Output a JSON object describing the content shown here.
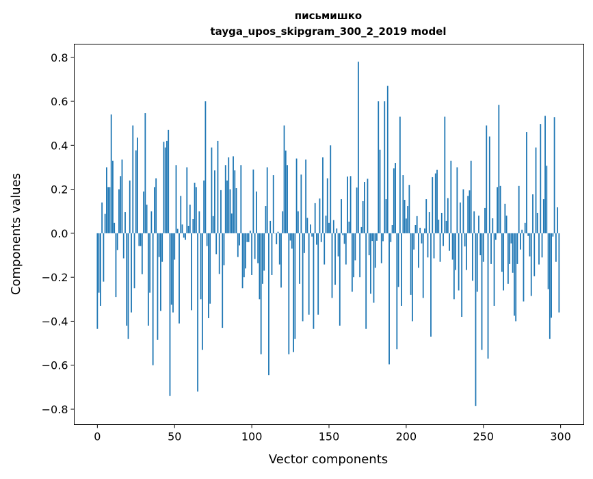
{
  "chart_data": {
    "type": "bar",
    "title_line1": "письмишко",
    "title_line2": "tayga_upos_skipgram_300_2_2019 model",
    "xlabel": "Vector components",
    "ylabel": "Components values",
    "xlim": [
      -15,
      315
    ],
    "ylim": [
      -0.87,
      0.86
    ],
    "xticks": [
      0,
      50,
      100,
      150,
      200,
      250,
      300
    ],
    "xtick_labels": [
      "0",
      "50",
      "100",
      "150",
      "200",
      "250",
      "300"
    ],
    "yticks": [
      -0.8,
      -0.6,
      -0.4,
      -0.2,
      0.0,
      0.2,
      0.4,
      0.6,
      0.8
    ],
    "ytick_labels": [
      "−0.8",
      "−0.6",
      "−0.4",
      "−0.2",
      "0.0",
      "0.2",
      "0.4",
      "0.6",
      "0.8"
    ],
    "grid": false,
    "color": "#1f77b4",
    "values": [
      -0.435,
      -0.27,
      -0.33,
      0.14,
      -0.22,
      0.088,
      0.3,
      0.21,
      0.21,
      0.54,
      0.33,
      0.047,
      -0.29,
      -0.076,
      0.2,
      0.26,
      0.335,
      -0.114,
      0.096,
      -0.42,
      -0.48,
      0.24,
      -0.36,
      0.49,
      -0.25,
      0.377,
      0.435,
      -0.058,
      -0.058,
      -0.186,
      0.19,
      0.547,
      0.13,
      -0.42,
      -0.27,
      0.1,
      -0.6,
      0.21,
      0.25,
      -0.485,
      -0.108,
      -0.353,
      -0.13,
      0.416,
      0.39,
      0.42,
      0.47,
      -0.74,
      -0.325,
      -0.36,
      -0.12,
      0.31,
      0.02,
      -0.41,
      0.17,
      0.04,
      -0.02,
      -0.03,
      0.3,
      0.034,
      0.13,
      -0.35,
      0.065,
      0.23,
      0.21,
      -0.72,
      0.1,
      -0.3,
      -0.53,
      0.24,
      0.6,
      -0.058,
      -0.386,
      -0.32,
      0.39,
      0.078,
      0.286,
      -0.095,
      0.42,
      -0.185,
      0.196,
      -0.43,
      -0.145,
      0.31,
      0.24,
      0.345,
      0.2,
      0.09,
      0.35,
      0.286,
      0.205,
      -0.108,
      -0.055,
      0.31,
      -0.25,
      -0.2,
      -0.16,
      -0.04,
      -0.04,
      0.012,
      -0.19,
      0.29,
      -0.117,
      0.19,
      -0.136,
      -0.3,
      -0.55,
      -0.23,
      -0.17,
      0.124,
      0.3,
      -0.645,
      0.056,
      -0.19,
      0.264,
      -0.001,
      -0.05,
      0.007,
      -0.142,
      -0.247,
      0.1,
      0.49,
      0.376,
      0.31,
      -0.55,
      -0.033,
      -0.07,
      -0.54,
      -0.48,
      0.34,
      0.1,
      -0.23,
      0.267,
      -0.4,
      -0.09,
      0.335,
      0.07,
      -0.37,
      0.04,
      -0.015,
      -0.435,
      0.137,
      -0.052,
      -0.37,
      0.158,
      -0.04,
      0.345,
      -0.142,
      0.08,
      0.25,
      0.047,
      0.4,
      -0.294,
      0.06,
      -0.234,
      0.022,
      -0.105,
      -0.42,
      0.155,
      -0.008,
      -0.048,
      -0.142,
      0.258,
      0.053,
      0.26,
      -0.266,
      -0.2,
      -0.123,
      0.208,
      0.78,
      -0.2,
      0.028,
      0.146,
      0.233,
      -0.435,
      0.248,
      -0.1,
      -0.275,
      -0.035,
      -0.316,
      -0.157,
      -0.034,
      0.6,
      0.38,
      -0.136,
      -0.036,
      0.6,
      0.155,
      0.67,
      -0.596,
      -0.04,
      0.037,
      0.295,
      0.32,
      -0.527,
      -0.244,
      0.53,
      -0.33,
      0.264,
      0.152,
      0.067,
      0.124,
      0.22,
      -0.28,
      -0.4,
      -0.074,
      0.037,
      0.078,
      -0.157,
      0.025,
      -0.046,
      -0.294,
      0.022,
      0.155,
      -0.11,
      0.096,
      -0.47,
      0.255,
      -0.114,
      0.272,
      0.289,
      0.062,
      -0.13,
      0.093,
      -0.058,
      0.53,
      0.056,
      0.16,
      -0.08,
      0.33,
      -0.12,
      -0.3,
      -0.167,
      0.3,
      -0.26,
      0.14,
      -0.38,
      0.2,
      -0.06,
      -0.167,
      0.17,
      0.195,
      0.33,
      -0.216,
      0.1,
      -0.785,
      -0.266,
      0.08,
      -0.1,
      -0.53,
      -0.13,
      0.115,
      0.49,
      -0.57,
      0.44,
      -0.14,
      0.068,
      -0.33,
      -0.03,
      0.21,
      0.584,
      0.215,
      -0.175,
      -0.26,
      0.134,
      0.08,
      -0.23,
      -0.14,
      -0.046,
      -0.18,
      -0.375,
      -0.4,
      -0.14,
      0.215,
      -0.074,
      0.016,
      -0.31,
      0.047,
      0.46,
      -0.012,
      -0.105,
      -0.285,
      0.177,
      -0.195,
      0.39,
      0.093,
      -0.142,
      0.497,
      -0.11,
      0.155,
      0.534,
      0.307,
      -0.254,
      -0.48,
      -0.384,
      -0.015,
      0.528,
      -0.13,
      0.118,
      -0.36
    ]
  }
}
